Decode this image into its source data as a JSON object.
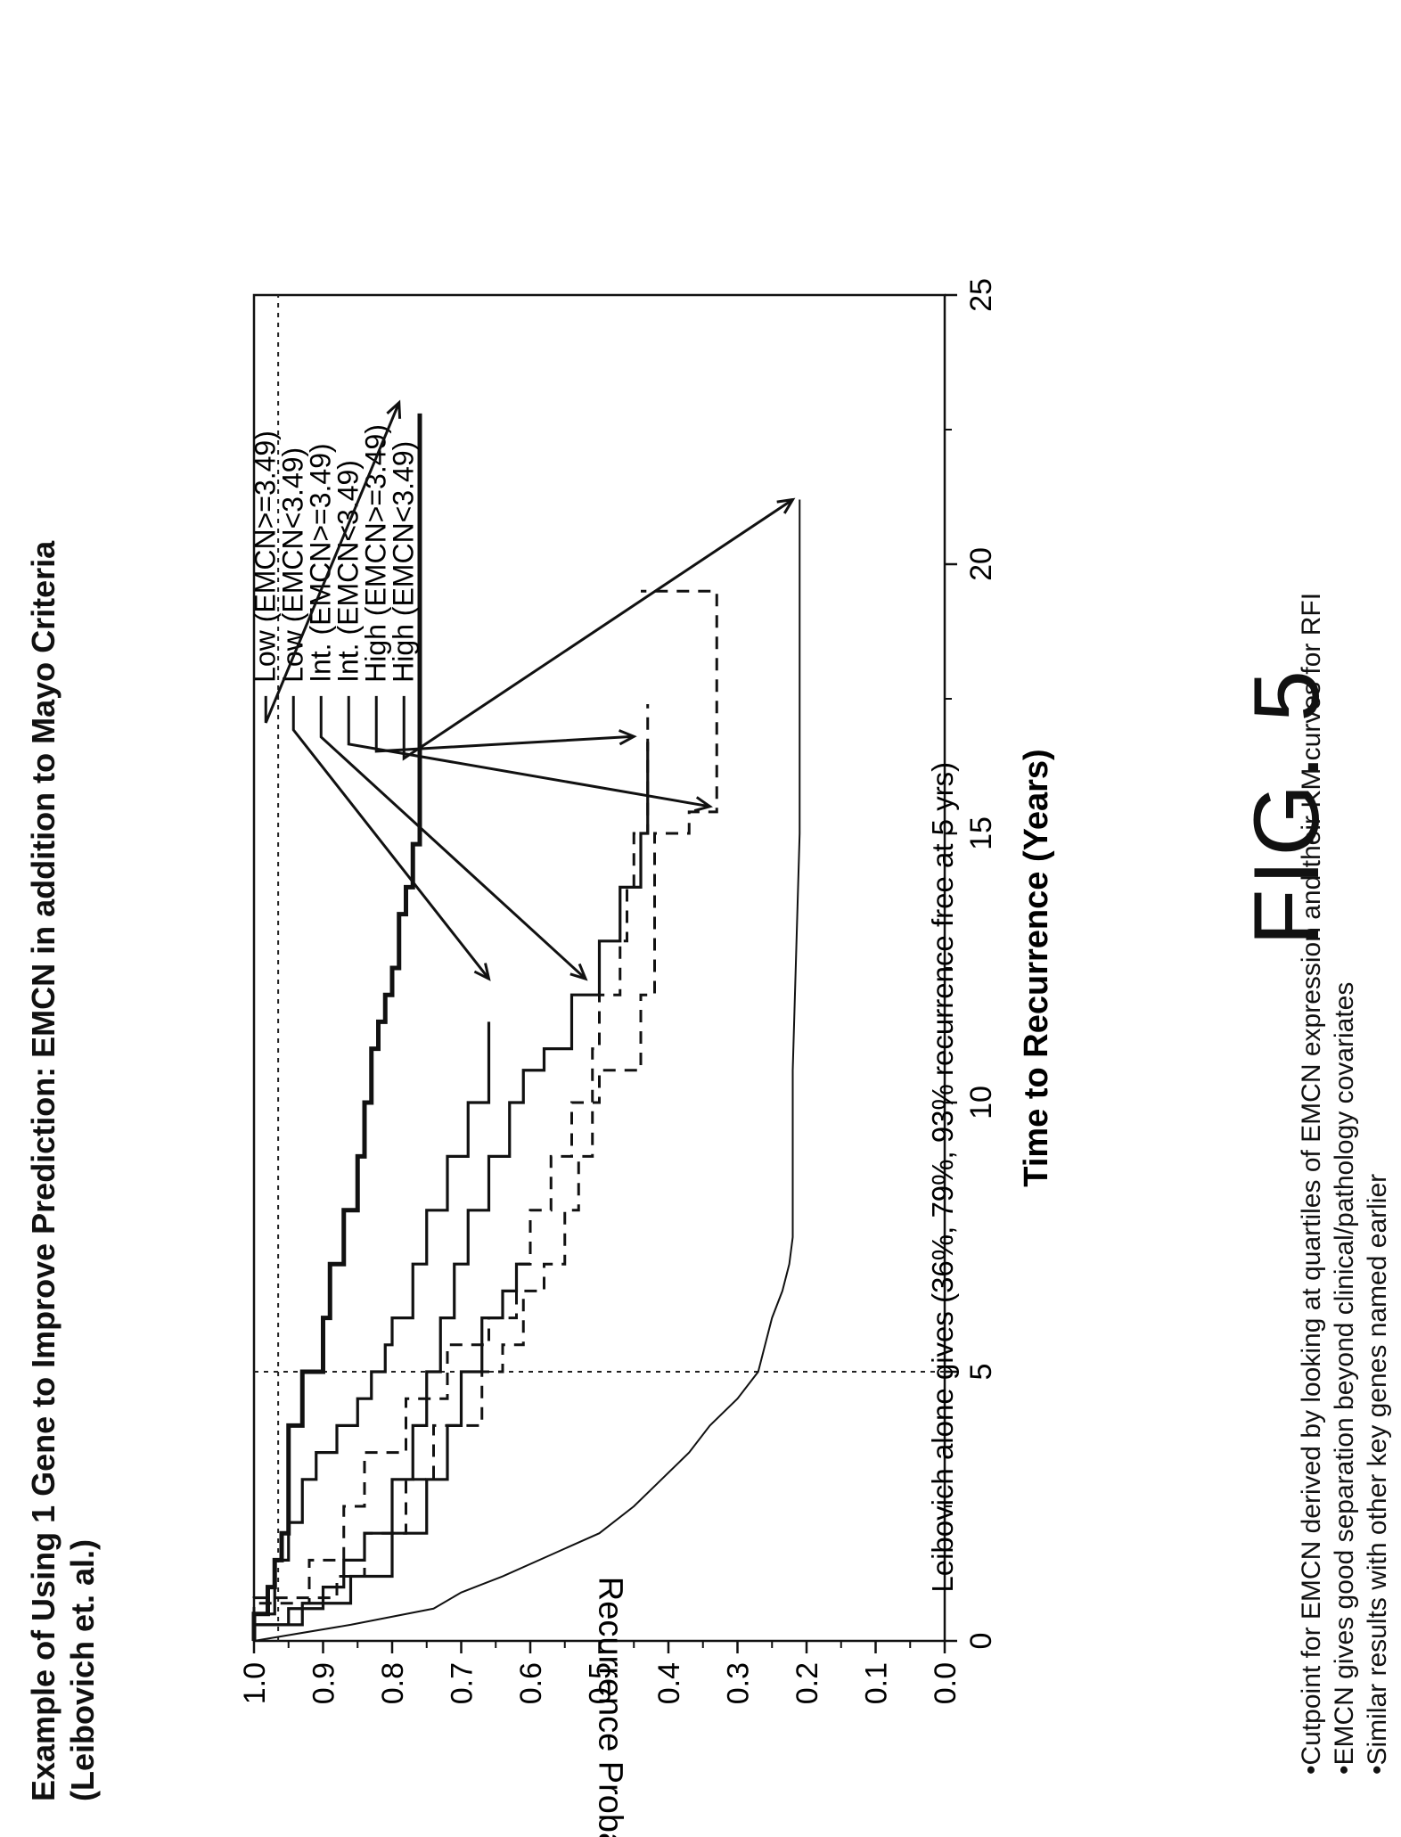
{
  "header": {
    "title_line1": "Example of Using 1 Gene to Improve Prediction: EMCN in addition to Mayo Criteria",
    "title_line2": "(Leibovich et. al.)"
  },
  "chart_data": {
    "type": "line",
    "title": "",
    "xlabel": "Time to Recurrence (Years)",
    "ylabel": "Recurrence Probability",
    "xlim": [
      0,
      25
    ],
    "ylim": [
      0.0,
      1.0
    ],
    "xticks": [
      "0",
      "5",
      "10",
      "15",
      "20",
      "25"
    ],
    "yticks": [
      "0.0",
      "0.1",
      "0.2",
      "0.3",
      "0.4",
      "0.5",
      "0.6",
      "0.7",
      "0.8",
      "0.9",
      "1.0"
    ],
    "reference_line": {
      "x": 5
    },
    "annotation": "Leibovich alone gives (36%, 79%, 93% recurrence free at 5 yrs)",
    "legend_labels": [
      "Low (EMCN>=3.49)",
      "Low (EMCN<3.49)",
      "Int. (EMCN>=3.49)",
      "Int. (EMCN<3.49)",
      "High (EMCN>=3.49)",
      "High (EMCN<3.49)"
    ],
    "series": [
      {
        "key": "leibovich",
        "style": "thin-solid",
        "x": [
          0,
          0.3,
          0.6,
          0.9,
          1.2,
          1.6,
          2,
          2.5,
          3,
          3.5,
          4,
          4.5,
          5,
          5.5,
          6,
          6.5,
          7,
          7.5,
          9,
          10.6,
          15,
          20,
          21.2
        ],
        "y": [
          1.0,
          0.86,
          0.74,
          0.7,
          0.64,
          0.57,
          0.5,
          0.45,
          0.41,
          0.37,
          0.34,
          0.3,
          0.27,
          0.26,
          0.25,
          0.235,
          0.225,
          0.22,
          0.22,
          0.22,
          0.21,
          0.21,
          0.21
        ]
      },
      {
        "key": "low-ge",
        "style": "thick-solid",
        "x": [
          0,
          0.5,
          1,
          1.5,
          2,
          3,
          4,
          5,
          6,
          7,
          8,
          9,
          10,
          11,
          11.5,
          12,
          12.5,
          13,
          13.5,
          14,
          14.8,
          15,
          16,
          17,
          20,
          22.8
        ],
        "y": [
          1.0,
          0.98,
          0.97,
          0.96,
          0.95,
          0.95,
          0.93,
          0.9,
          0.89,
          0.87,
          0.85,
          0.84,
          0.83,
          0.82,
          0.81,
          0.8,
          0.79,
          0.79,
          0.78,
          0.77,
          0.76,
          0.76,
          0.76,
          0.76,
          0.76,
          0.76
        ]
      },
      {
        "key": "low-lt",
        "style": "medium-solid",
        "x": [
          0,
          0.5,
          1.5,
          2.2,
          3,
          3.5,
          4,
          4.5,
          5,
          5.5,
          6,
          7,
          8,
          9,
          10,
          11.2,
          11.5
        ],
        "y": [
          1.0,
          0.97,
          0.95,
          0.93,
          0.91,
          0.88,
          0.85,
          0.83,
          0.81,
          0.8,
          0.77,
          0.75,
          0.72,
          0.69,
          0.66,
          0.66,
          0.66
        ]
      },
      {
        "key": "int-ge",
        "style": "medium-solid",
        "x": [
          0,
          0.3,
          0.6,
          1,
          1.5,
          2,
          3,
          4,
          5,
          6,
          7,
          8,
          9,
          10,
          10.6,
          11,
          12,
          13,
          14,
          15,
          16,
          16.7
        ],
        "y": [
          1.0,
          0.95,
          0.9,
          0.87,
          0.84,
          0.8,
          0.77,
          0.75,
          0.73,
          0.71,
          0.69,
          0.66,
          0.63,
          0.61,
          0.58,
          0.54,
          0.5,
          0.47,
          0.44,
          0.43,
          0.43,
          0.43
        ]
      },
      {
        "key": "int-lt",
        "style": "medium-solid",
        "x": [
          0,
          0.3,
          0.7,
          1.2,
          2,
          3,
          4,
          5,
          6,
          6.5,
          7
        ],
        "y": [
          1.0,
          0.93,
          0.86,
          0.8,
          0.75,
          0.72,
          0.7,
          0.67,
          0.64,
          0.62,
          0.6
        ]
      },
      {
        "key": "high-ge",
        "style": "dashed",
        "x": [
          0,
          0.8,
          1.2,
          2,
          3,
          4,
          5,
          5.5,
          6.5,
          7,
          8,
          9,
          10.6,
          11,
          12,
          13,
          14,
          15,
          16,
          17.4
        ],
        "y": [
          1.0,
          0.88,
          0.84,
          0.78,
          0.74,
          0.67,
          0.64,
          0.61,
          0.58,
          0.55,
          0.53,
          0.51,
          0.51,
          0.5,
          0.47,
          0.46,
          0.45,
          0.43,
          0.43,
          0.43
        ]
      },
      {
        "key": "high-lt",
        "style": "dashed",
        "x": [
          0,
          0.7,
          1.5,
          2.5,
          3.5,
          4.5,
          5.5,
          6,
          7,
          8,
          9,
          10,
          10.6,
          12,
          13,
          14,
          15,
          15.4,
          16,
          18,
          19,
          19.5
        ],
        "y": [
          1.0,
          0.92,
          0.87,
          0.84,
          0.78,
          0.72,
          0.66,
          0.62,
          0.6,
          0.57,
          0.54,
          0.5,
          0.44,
          0.42,
          0.42,
          0.42,
          0.37,
          0.33,
          0.33,
          0.33,
          0.33,
          0.44
        ]
      }
    ]
  },
  "figure_caption": "FIG. 5",
  "bullets": [
    "•Cutpoint for EMCN derived by looking at quartiles of EMCN expression and their KM curves for RFI",
    "•EMCN gives good separation beyond clinical/pathology covariates",
    "•Similar results with other key genes named earlier"
  ]
}
